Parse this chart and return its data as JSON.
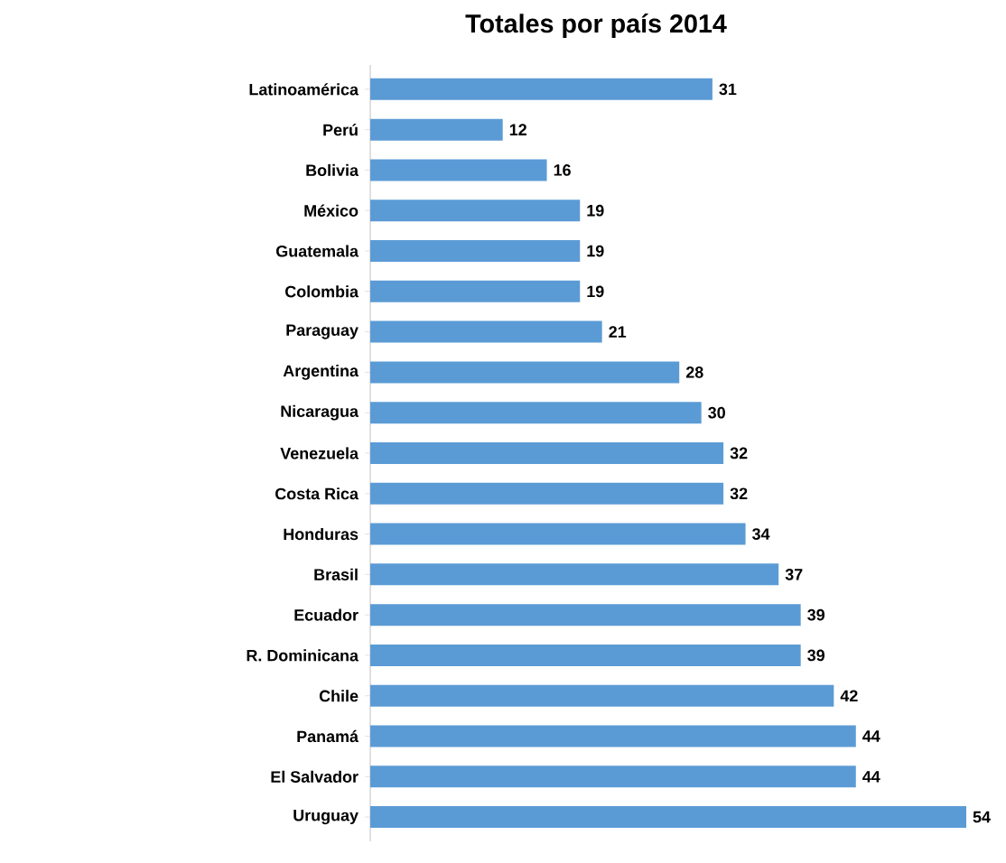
{
  "chart_data": {
    "type": "bar",
    "orientation": "horizontal",
    "title": "Totales por país 2014",
    "categories": [
      "Latinoamérica",
      "Perú",
      "Bolivia",
      "México",
      "Guatemala",
      "Colombia",
      "Paraguay",
      "Argentina",
      "Nicaragua",
      "Venezuela",
      "Costa Rica",
      "Honduras",
      "Brasil",
      "Ecuador",
      "R. Dominicana",
      "Chile",
      "Panamá",
      "El Salvador",
      "Uruguay"
    ],
    "values": [
      31,
      12,
      16,
      19,
      19,
      19,
      21,
      28,
      30,
      32,
      32,
      34,
      37,
      39,
      39,
      42,
      44,
      44,
      54
    ],
    "color": "#5b9bd5",
    "data_labels": true
  }
}
